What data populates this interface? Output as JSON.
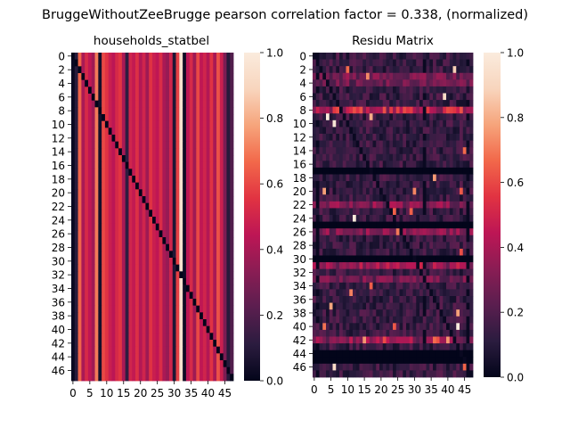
{
  "figure": {
    "suptitle": "BruggeWithoutZeeBrugge pearson correlation factor = 0.338, (normalized)"
  },
  "colormap": {
    "name": "rocket",
    "stops": [
      "#03051a",
      "#2b1c3f",
      "#5a1e4f",
      "#8a1d54",
      "#bd1655",
      "#e13342",
      "#f2684a",
      "#f6a47b",
      "#f8d5bd",
      "#faebdd"
    ]
  },
  "chart_data": [
    {
      "type": "heatmap",
      "title": "households_statbel",
      "n": 48,
      "pattern": "column values constant down each column; zero on the diagonal",
      "column_values": [
        0.02,
        0.1,
        0.66,
        0.4,
        0.52,
        0.45,
        0.38,
        0.7,
        0.05,
        0.6,
        0.55,
        0.48,
        0.44,
        0.52,
        0.56,
        0.4,
        0.12,
        0.5,
        0.46,
        0.54,
        0.42,
        0.5,
        0.38,
        0.55,
        0.48,
        0.45,
        0.53,
        0.4,
        0.36,
        0.5,
        0.08,
        0.58,
        0.95,
        0.03,
        0.44,
        0.52,
        0.38,
        0.6,
        0.45,
        0.5,
        0.42,
        0.55,
        0.4,
        0.62,
        0.48,
        0.3,
        0.1,
        0.2
      ],
      "ytick_labels": [
        "0",
        "2",
        "4",
        "6",
        "8",
        "10",
        "12",
        "14",
        "16",
        "18",
        "20",
        "22",
        "24",
        "26",
        "28",
        "30",
        "32",
        "34",
        "36",
        "38",
        "40",
        "42",
        "44",
        "46"
      ],
      "xtick_labels": [
        "0",
        "5",
        "10",
        "15",
        "20",
        "25",
        "30",
        "35",
        "40",
        "45"
      ],
      "colorbar": {
        "ticks": [
          "0.0",
          "0.2",
          "0.4",
          "0.6",
          "0.8",
          "1.0"
        ],
        "range": [
          0,
          1
        ]
      }
    },
    {
      "type": "heatmap",
      "title": "Residu Matrix",
      "n": 48,
      "pattern": "mostly dark (0–0.3) with bright horizontal bands at rows 8, 22, 26, 31, 42 and dark blank rows at 17, 25, 30, 44, 45; sparse bright cells up to about 1.0",
      "ytick_labels": [
        "0",
        "2",
        "4",
        "6",
        "8",
        "10",
        "12",
        "14",
        "16",
        "18",
        "20",
        "22",
        "24",
        "26",
        "28",
        "30",
        "32",
        "34",
        "36",
        "38",
        "40",
        "42",
        "44",
        "46"
      ],
      "xtick_labels": [
        "0",
        "5",
        "10",
        "15",
        "20",
        "25",
        "30",
        "35",
        "40",
        "45"
      ],
      "colorbar": {
        "ticks": [
          "0.0",
          "0.2",
          "0.4",
          "0.6",
          "0.8",
          "1.0"
        ],
        "range": [
          0,
          1
        ]
      }
    }
  ]
}
